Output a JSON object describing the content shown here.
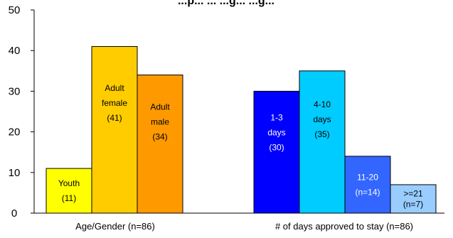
{
  "chart_data": {
    "type": "bar",
    "title": "...p... ... ...g... ...g...",
    "ylim": [
      0,
      50
    ],
    "yticks": [
      0,
      10,
      20,
      30,
      40,
      50
    ],
    "grid": false,
    "groups": [
      {
        "label": "Age/Gender (n=86)",
        "bars": [
          {
            "lines": [
              "Youth",
              "(11)"
            ],
            "value": 11,
            "color": "#ffff00",
            "text_color": "#000000"
          },
          {
            "lines": [
              "Adult",
              "female",
              "(41)"
            ],
            "value": 41,
            "color": "#ffcc00",
            "text_color": "#000000"
          },
          {
            "lines": [
              "Adult",
              "male",
              "(34)"
            ],
            "value": 34,
            "color": "#ff9900",
            "text_color": "#000000"
          }
        ]
      },
      {
        "label": "# of days approved to stay (n=86)",
        "bars": [
          {
            "lines": [
              "1-3",
              "days",
              "(30)"
            ],
            "value": 30,
            "color": "#0000ff",
            "text_color": "#ffffff"
          },
          {
            "lines": [
              "4-10",
              "days",
              "(35)"
            ],
            "value": 35,
            "color": "#00ccff",
            "text_color": "#000000"
          },
          {
            "lines": [
              "11-20",
              "(n=14)"
            ],
            "value": 14,
            "color": "#3366ff",
            "text_color": "#ffffff"
          },
          {
            "lines": [
              ">=21",
              "(n=7)"
            ],
            "value": 7,
            "color": "#99ccff",
            "text_color": "#000000"
          }
        ]
      }
    ]
  }
}
